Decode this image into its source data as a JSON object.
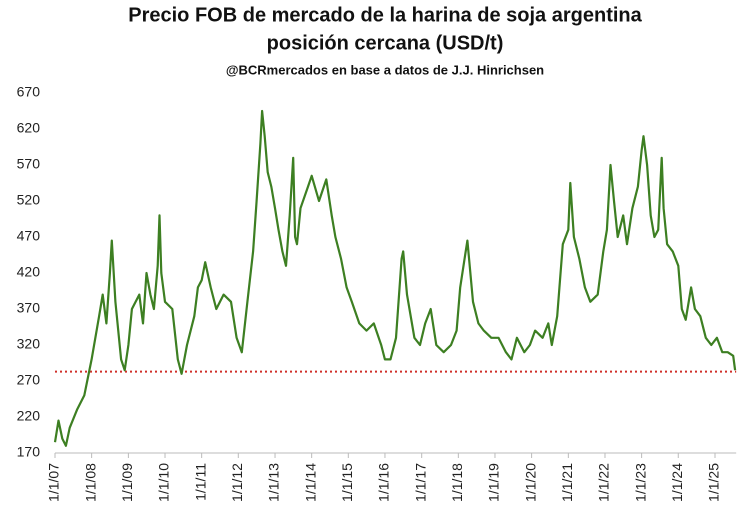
{
  "chart_data": {
    "type": "line",
    "title": [
      "Precio FOB de mercado de la harina de soja argentina",
      "posición cercana (USD/t)"
    ],
    "subtitle": "@BCRmercados en base a datos de J.J. Hinrichsen",
    "x": [
      "2007-01-01",
      "2007-02-05",
      "2007-03-15",
      "2007-04-20",
      "2007-05-27",
      "2007-08-08",
      "2007-10-20",
      "2008-01-01",
      "2008-03-15",
      "2008-04-20",
      "2008-05-27",
      "2008-07-01",
      "2008-07-20",
      "2008-08-25",
      "2008-10-20",
      "2008-11-25",
      "2009-01-01",
      "2009-02-05",
      "2009-04-20",
      "2009-05-27",
      "2009-07-01",
      "2009-08-08",
      "2009-09-12",
      "2009-10-20",
      "2009-11-07",
      "2009-11-25",
      "2010-01-01",
      "2010-03-15",
      "2010-05-08",
      "2010-06-15",
      "2010-08-08",
      "2010-10-20",
      "2010-11-25",
      "2011-01-01",
      "2011-02-05",
      "2011-04-01",
      "2011-05-27",
      "2011-08-08",
      "2011-10-20",
      "2011-12-15",
      "2012-02-05",
      "2012-04-01",
      "2012-05-27",
      "2012-07-01",
      "2012-08-08",
      "2012-08-25",
      "2012-09-20",
      "2012-10-20",
      "2012-11-25",
      "2013-01-01",
      "2013-02-05",
      "2013-03-15",
      "2013-04-20",
      "2013-05-27",
      "2013-07-01",
      "2013-07-20",
      "2013-08-08",
      "2013-09-12",
      "2013-11-25",
      "2014-01-01",
      "2014-03-15",
      "2014-05-27",
      "2014-07-20",
      "2014-08-25",
      "2014-10-20",
      "2014-12-15",
      "2015-02-05",
      "2015-04-20",
      "2015-07-01",
      "2015-09-12",
      "2015-11-25",
      "2016-01-01",
      "2016-02-25",
      "2016-04-20",
      "2016-06-15",
      "2016-07-01",
      "2016-08-08",
      "2016-10-20",
      "2016-12-15",
      "2017-02-05",
      "2017-04-01",
      "2017-05-27",
      "2017-08-08",
      "2017-10-20",
      "2017-12-15",
      "2018-01-20",
      "2018-03-15",
      "2018-04-01",
      "2018-05-27",
      "2018-07-20",
      "2018-09-12",
      "2018-11-25",
      "2019-02-05",
      "2019-04-20",
      "2019-06-15",
      "2019-08-08",
      "2019-10-20",
      "2019-12-15",
      "2020-02-05",
      "2020-04-20",
      "2020-06-15",
      "2020-07-20",
      "2020-09-12",
      "2020-11-07",
      "2021-01-01",
      "2021-01-20",
      "2021-02-25",
      "2021-04-20",
      "2021-06-15",
      "2021-08-08",
      "2021-10-20",
      "2021-12-15",
      "2022-01-20",
      "2022-02-25",
      "2022-04-01",
      "2022-05-08",
      "2022-07-01",
      "2022-08-08",
      "2022-10-01",
      "2022-11-25",
      "2023-01-01",
      "2023-01-20",
      "2023-02-25",
      "2023-04-01",
      "2023-05-08",
      "2023-06-15",
      "2023-07-20",
      "2023-08-08",
      "2023-09-12",
      "2023-11-07",
      "2024-01-01",
      "2024-02-05",
      "2024-03-15",
      "2024-05-08",
      "2024-06-15",
      "2024-08-08",
      "2024-10-01",
      "2024-11-25",
      "2025-01-20",
      "2025-03-15",
      "2025-05-08",
      "2025-07-01",
      "2025-07-20"
    ],
    "series": [
      {
        "name": "FOB",
        "color": "#3d7f22",
        "values": [
          185,
          215,
          190,
          180,
          205,
          230,
          250,
          300,
          360,
          390,
          350,
          420,
          465,
          380,
          300,
          285,
          320,
          370,
          390,
          350,
          420,
          390,
          370,
          430,
          500,
          420,
          380,
          370,
          300,
          280,
          320,
          360,
          400,
          410,
          435,
          400,
          370,
          390,
          380,
          330,
          310,
          380,
          450,
          520,
          600,
          645,
          610,
          560,
          540,
          510,
          480,
          450,
          430,
          500,
          580,
          470,
          460,
          510,
          540,
          555,
          520,
          550,
          500,
          470,
          440,
          400,
          380,
          350,
          340,
          350,
          320,
          300,
          300,
          330,
          440,
          450,
          390,
          330,
          320,
          350,
          370,
          320,
          310,
          320,
          340,
          400,
          450,
          465,
          380,
          350,
          340,
          330,
          330,
          310,
          300,
          330,
          310,
          320,
          340,
          330,
          350,
          320,
          360,
          460,
          480,
          545,
          470,
          440,
          400,
          380,
          390,
          450,
          480,
          570,
          520,
          470,
          500,
          460,
          510,
          540,
          590,
          610,
          570,
          500,
          470,
          480,
          580,
          510,
          460,
          450,
          430,
          370,
          355,
          400,
          370,
          360,
          330,
          320,
          330,
          310,
          310,
          305,
          285
        ]
      }
    ],
    "xlim": [
      "2007-01-01",
      "2025-07-31"
    ],
    "xticks": [
      {
        "value": "2007-01-01",
        "label": "1/1/07"
      },
      {
        "value": "2008-01-01",
        "label": "1/1/08"
      },
      {
        "value": "2009-01-01",
        "label": "1/1/09"
      },
      {
        "value": "2010-01-01",
        "label": "1/1/10"
      },
      {
        "value": "2011-01-01",
        "label": "1/1/11"
      },
      {
        "value": "2012-01-01",
        "label": "1/1/12"
      },
      {
        "value": "2013-01-01",
        "label": "1/1/13"
      },
      {
        "value": "2014-01-01",
        "label": "1/1/14"
      },
      {
        "value": "2015-01-01",
        "label": "1/1/15"
      },
      {
        "value": "2016-01-01",
        "label": "1/1/16"
      },
      {
        "value": "2017-01-01",
        "label": "1/1/17"
      },
      {
        "value": "2018-01-01",
        "label": "1/1/18"
      },
      {
        "value": "2019-01-01",
        "label": "1/1/19"
      },
      {
        "value": "2020-01-01",
        "label": "1/1/20"
      },
      {
        "value": "2021-01-01",
        "label": "1/1/21"
      },
      {
        "value": "2022-01-01",
        "label": "1/1/22"
      },
      {
        "value": "2023-01-01",
        "label": "1/1/23"
      },
      {
        "value": "2024-01-01",
        "label": "1/1/24"
      },
      {
        "value": "2025-01-01",
        "label": "1/1/25"
      }
    ],
    "ylim": [
      170,
      670
    ],
    "yticks": [
      170,
      220,
      270,
      320,
      370,
      420,
      470,
      520,
      570,
      620,
      670
    ],
    "grid": false,
    "hline": {
      "value": 283,
      "color": "#d0302a"
    }
  }
}
